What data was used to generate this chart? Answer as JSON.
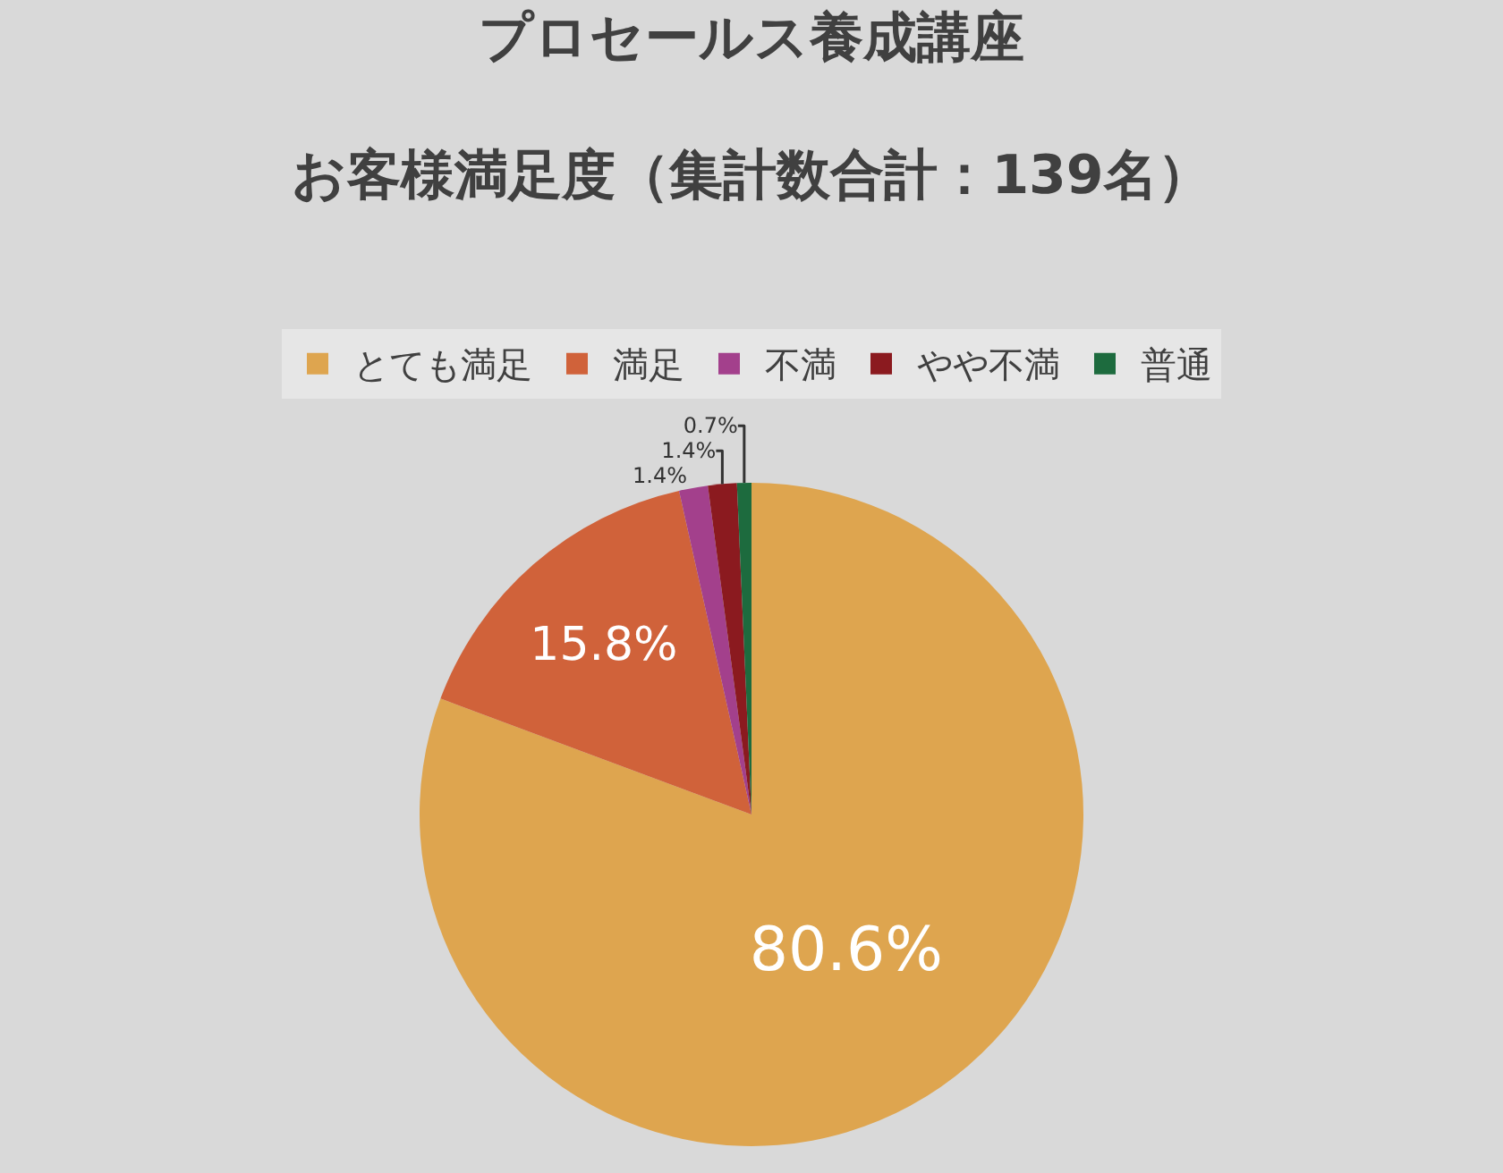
{
  "chart_data": {
    "type": "pie",
    "title": "プロセールス養成講座",
    "subtitle": "お客様満足度（集計数合計：139名）",
    "categories": [
      "とても満足",
      "満足",
      "不満",
      "やや不満",
      "普通"
    ],
    "values": [
      80.6,
      15.8,
      1.4,
      1.4,
      0.7
    ],
    "value_labels": [
      "80.6%",
      "15.8%",
      "1.4%",
      "1.4%",
      "0.7%"
    ],
    "colors": [
      "#dea54f",
      "#d0623a",
      "#a3408c",
      "#8b1a1f",
      "#1d6b3e"
    ],
    "legend": "top"
  }
}
